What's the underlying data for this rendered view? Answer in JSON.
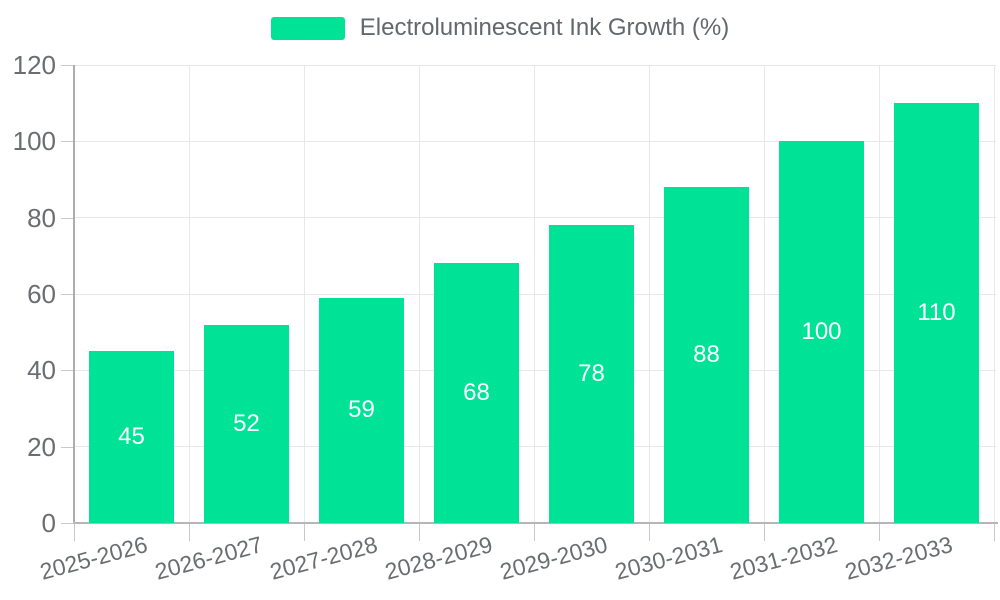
{
  "chart_data": {
    "type": "bar",
    "title": "Electroluminescent Ink Growth (%)",
    "categories": [
      "2025-2026",
      "2026-2027",
      "2027-2028",
      "2028-2029",
      "2029-2030",
      "2030-2031",
      "2031-2032",
      "2032-2033"
    ],
    "series": [
      {
        "name": "Electroluminescent Ink Growth (%)",
        "values": [
          45,
          52,
          59,
          68,
          78,
          88,
          100,
          110
        ]
      }
    ],
    "xlabel": "",
    "ylabel": "",
    "ylim": [
      0,
      120
    ],
    "yticks": [
      0,
      20,
      40,
      60,
      80,
      100,
      120
    ],
    "grid": true,
    "legend_position": "top",
    "bar_labels_visible": true
  },
  "colors": {
    "bar": "#00E396",
    "bar_label": "#ffffff",
    "grid": "#e8e8e8",
    "axis_line": "#b6b6b6",
    "axis_label": "#6b6e71",
    "legend_text": "#63686c",
    "background": "#ffffff"
  }
}
